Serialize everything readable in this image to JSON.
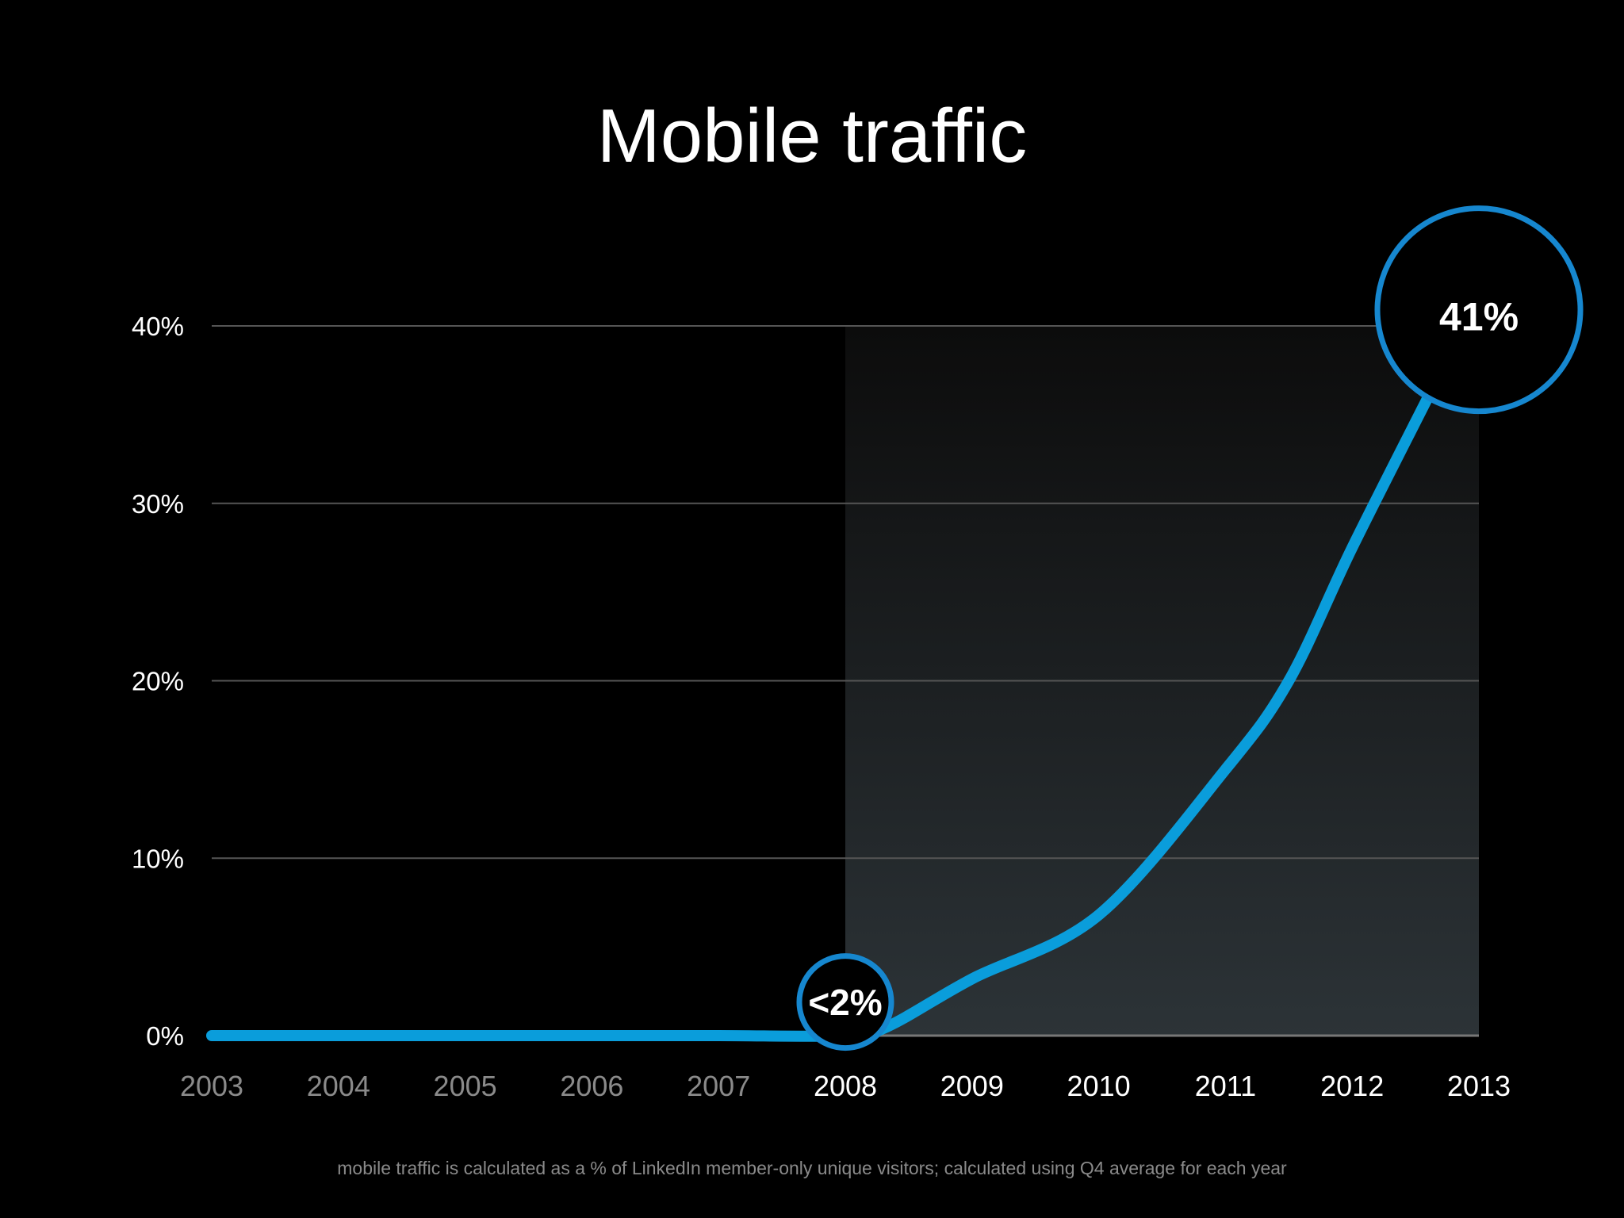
{
  "title": "Mobile traffic",
  "footnote": "mobile traffic is calculated as a % of LinkedIn member-only unique visitors; calculated using Q4 average for each year",
  "colors": {
    "background": "#000000",
    "line": "#0a9ddb",
    "callout_ring": "#1687cf",
    "gridline": "#555555",
    "highlight_top": "#0c0c0c",
    "highlight_bottom": "#2c3337",
    "tick_dim": "#8a8a8a",
    "tick_bright": "#ffffff"
  },
  "chart_data": {
    "type": "line",
    "title": "Mobile traffic",
    "xlabel": "",
    "ylabel": "",
    "x": [
      2003,
      2004,
      2005,
      2006,
      2007,
      2008,
      2009,
      2010,
      2011,
      2012,
      2013
    ],
    "y_ticks": [
      "0%",
      "10%",
      "20%",
      "30%",
      "40%"
    ],
    "ylim": [
      0,
      40
    ],
    "grid": true,
    "highlight_range": [
      2008,
      2013
    ],
    "series": [
      {
        "points": [
          [
            2003,
            0
          ],
          [
            2004,
            0
          ],
          [
            2005,
            0
          ],
          [
            2006,
            0
          ],
          [
            2007,
            0
          ],
          [
            2008,
            0
          ],
          [
            2008.33,
            0.5
          ],
          [
            2009,
            3.2
          ],
          [
            2010,
            6.8
          ],
          [
            2011,
            15
          ],
          [
            2011.5,
            20
          ],
          [
            2012,
            27.5
          ],
          [
            2012.6,
            36
          ]
        ]
      }
    ],
    "annotations": [
      {
        "text": "<2%",
        "x": 2008,
        "y": 1
      },
      {
        "text": "41%",
        "x": 2013,
        "y": 41
      }
    ]
  }
}
